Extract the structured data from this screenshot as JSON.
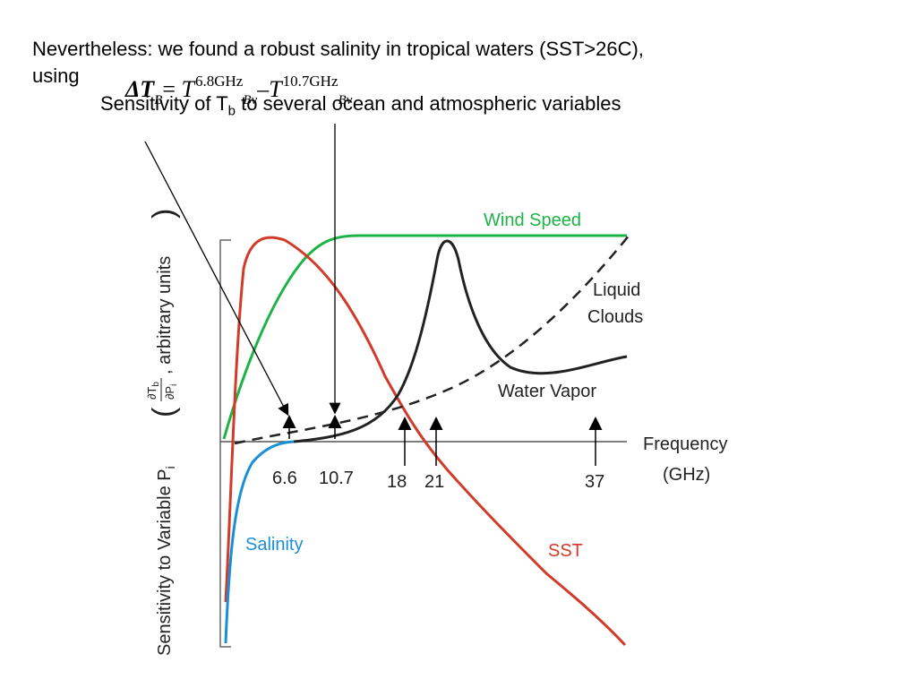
{
  "slide": {
    "headline_line1": "Nevertheless: we found a robust salinity in tropical waters (SST>26C),",
    "headline_line2": "using",
    "equation": {
      "delta_t": "ΔT",
      "delta_sub": "B",
      "equals": "=",
      "t1": "T",
      "t1_sup": "6.8GHz",
      "t1_sub": "Bv",
      "minus": "–",
      "t2": "T",
      "t2_sup": "10.7GHz",
      "t2_sub": "Bv"
    },
    "subtitle_main": "Sensitivity of T",
    "subtitle_sub": "b",
    "subtitle_rest": " to several ocean and atmospheric variables"
  },
  "figure": {
    "y_axis_label_main": "Sensitivity to Variable P",
    "y_axis_label_sub": "i",
    "y_axis_label_partial_top": "∂T",
    "y_axis_label_partial_top_sub": "b",
    "y_axis_label_partial_bottom": "∂P",
    "y_axis_label_partial_bottom_sub": "i",
    "y_axis_label_units": ", arbitrary units",
    "x_axis_label_line1": "Frequency",
    "x_axis_label_line2": "(GHz)",
    "tick_labels": [
      "6.6",
      "10.7",
      "18",
      "21",
      "37"
    ],
    "curves": {
      "wind_speed": {
        "label": "Wind Speed",
        "color": "#1db347"
      },
      "liquid_clouds": {
        "label_line1": "Liquid",
        "label_line2": "Clouds",
        "color": "#222222"
      },
      "water_vapor": {
        "label": "Water Vapor",
        "color": "#222222"
      },
      "salinity": {
        "label": "Salinity",
        "color": "#1a8fd6"
      },
      "sst": {
        "label": "SST",
        "color": "#d23a2a"
      }
    }
  }
}
